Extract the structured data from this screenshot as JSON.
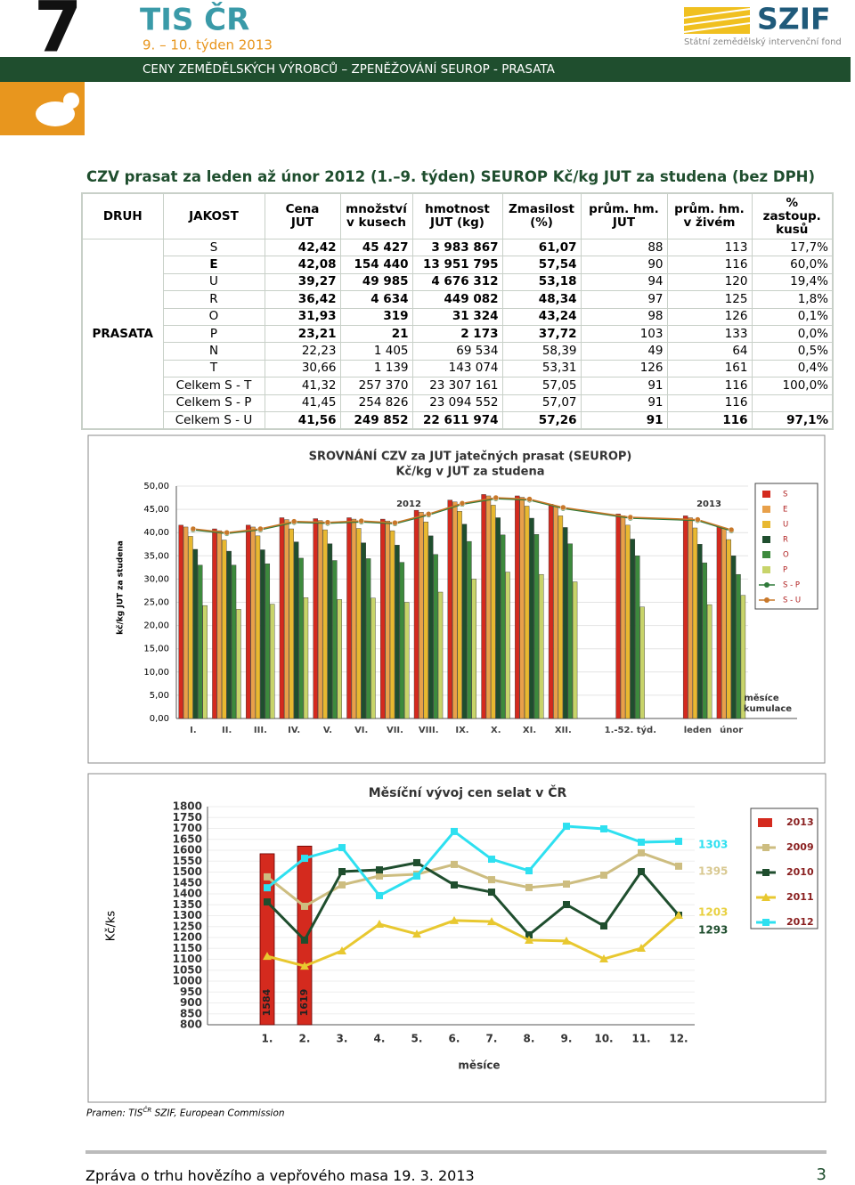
{
  "header": {
    "number": "7",
    "brand": "TIS ČR",
    "week": "9. – 10. týden  2013",
    "band": "CENY ZEMĚDĚLSKÝCH VÝROBCŮ – ZPENĚŽOVÁNÍ SEUROP - PRASATA",
    "logo": "SZIF",
    "logo_sub": "Státní zemědělský intervenční fond"
  },
  "section_title": "CZV prasat za leden až únor 2012 (1.–9. týden) SEUROP Kč/kg JUT za studena (bez DPH)",
  "table": {
    "headers": [
      "DRUH",
      "JAKOST",
      "Cena\nJUT",
      "množství\nv kusech",
      "hmotnost\nJUT  (kg)",
      "Zmasilost\n(%)",
      "prům. hm.\nJUT",
      "prům. hm.\nv živém",
      "%\nzastoup.\nkusů"
    ],
    "group": "PRASATA",
    "rows": [
      [
        "S",
        "42,42",
        "45 427",
        "3 983 867",
        "61,07",
        "88",
        "113",
        "17,7%"
      ],
      [
        "E",
        "42,08",
        "154 440",
        "13 951 795",
        "57,54",
        "90",
        "116",
        "60,0%"
      ],
      [
        "U",
        "39,27",
        "49 985",
        "4 676 312",
        "53,18",
        "94",
        "120",
        "19,4%"
      ],
      [
        "R",
        "36,42",
        "4 634",
        "449 082",
        "48,34",
        "97",
        "125",
        "1,8%"
      ],
      [
        "O",
        "31,93",
        "319",
        "31 324",
        "43,24",
        "98",
        "126",
        "0,1%"
      ],
      [
        "P",
        "23,21",
        "21",
        "2 173",
        "37,72",
        "103",
        "133",
        "0,0%"
      ],
      [
        "N",
        "22,23",
        "1 405",
        "69 534",
        "58,39",
        "49",
        "64",
        "0,5%"
      ],
      [
        "T",
        "30,66",
        "1 139",
        "143 074",
        "53,31",
        "126",
        "161",
        "0,4%"
      ],
      [
        "Celkem S - T",
        "41,32",
        "257 370",
        "23 307 161",
        "57,05",
        "91",
        "116",
        "100,0%"
      ],
      [
        "Celkem S - P",
        "41,45",
        "254 826",
        "23 094 552",
        "57,07",
        "91",
        "116"
      ],
      [
        "Celkem S - U",
        "41,56",
        "249 852",
        "22 611 974",
        "57,26",
        "91",
        "116",
        "97,1%"
      ]
    ]
  },
  "chart_data": [
    {
      "type": "bar",
      "title": "SROVNÁNÍ  CZV za JUT jatečných prasat (SEUROP)",
      "subtitle": "Kč/kg v JUT za studena",
      "y_label": "kč/kg JUT za studena",
      "annotations": [
        "2012",
        "2013",
        "měsíce",
        "kumulace"
      ],
      "categories": [
        "I.",
        "II.",
        "III.",
        "IV.",
        "V.",
        "VI.",
        "VII.",
        "VIII.",
        "IX.",
        "X.",
        "XI.",
        "XII.",
        "1.-52. týd.",
        "leden",
        "únor"
      ],
      "ylim": [
        0,
        50
      ],
      "yticks": [
        {
          "value": 0,
          "label": "0,00"
        },
        {
          "value": 5,
          "label": "5,00"
        },
        {
          "value": 10,
          "label": "10,00"
        },
        {
          "value": 15,
          "label": "15,00"
        },
        {
          "value": 20,
          "label": "20,00"
        },
        {
          "value": 25,
          "label": "25,00"
        },
        {
          "value": 30,
          "label": "30,00"
        },
        {
          "value": 35,
          "label": "35,00"
        },
        {
          "value": 40,
          "label": "40,00"
        },
        {
          "value": 45,
          "label": "45,00"
        },
        {
          "value": 50,
          "label": "50,00"
        }
      ],
      "grid": true,
      "series": [
        {
          "name": "S",
          "color": "#d42a1e",
          "kind": "bar",
          "values": [
            41.6,
            40.8,
            41.6,
            43.2,
            43.0,
            43.2,
            42.9,
            44.8,
            47.0,
            48.2,
            47.9,
            46.1,
            44.0,
            43.6,
            41.3
          ]
        },
        {
          "name": "E",
          "color": "#e8a04a",
          "kind": "bar",
          "values": [
            41.2,
            40.4,
            41.2,
            42.8,
            42.6,
            42.9,
            42.5,
            44.4,
            46.6,
            47.9,
            47.6,
            45.7,
            43.6,
            43.2,
            40.9
          ]
        },
        {
          "name": "U",
          "color": "#e8b830",
          "kind": "bar",
          "values": [
            39.2,
            38.4,
            39.3,
            40.8,
            40.6,
            40.9,
            40.4,
            42.3,
            44.6,
            45.9,
            45.7,
            43.6,
            41.6,
            41.0,
            38.5
          ]
        },
        {
          "name": "R",
          "color": "#1f4e2e",
          "kind": "bar",
          "values": [
            36.4,
            36.0,
            36.3,
            38.0,
            37.6,
            37.8,
            37.3,
            39.3,
            41.8,
            43.2,
            43.1,
            41.1,
            38.6,
            37.5,
            35.0
          ]
        },
        {
          "name": "O",
          "color": "#3d8a3d",
          "kind": "bar",
          "values": [
            33.0,
            33.0,
            33.3,
            34.5,
            34.0,
            34.4,
            33.6,
            35.3,
            38.1,
            39.5,
            39.6,
            37.6,
            35.0,
            33.5,
            31.0
          ]
        },
        {
          "name": "P",
          "color": "#c8d46a",
          "kind": "bar",
          "values": [
            24.3,
            23.5,
            24.6,
            26.0,
            25.6,
            25.9,
            25.0,
            27.2,
            30.0,
            31.5,
            31.0,
            29.4,
            24.0,
            24.5,
            26.5
          ]
        },
        {
          "name": "S - P",
          "color": "#2f7a3a",
          "kind": "line",
          "values": [
            40.6,
            39.8,
            40.6,
            42.2,
            42.0,
            42.3,
            41.9,
            43.8,
            46.1,
            47.3,
            47.0,
            45.2,
            43.1,
            42.6,
            40.4
          ]
        },
        {
          "name": "S - U",
          "color": "#c8782a",
          "kind": "line",
          "values": [
            40.8,
            40.0,
            40.8,
            42.4,
            42.2,
            42.5,
            42.1,
            44.0,
            46.3,
            47.5,
            47.2,
            45.4,
            43.3,
            42.8,
            40.6
          ]
        }
      ]
    },
    {
      "type": "line",
      "title": "Měsíční vývoj cen selat v ČR",
      "x_label": "měsíce",
      "y_label": "Kč/ks",
      "categories": [
        "1.",
        "2.",
        "3.",
        "4.",
        "5.",
        "6.",
        "7.",
        "8.",
        "9.",
        "10.",
        "11.",
        "12."
      ],
      "ylim": [
        800,
        1800
      ],
      "yticks": [
        800,
        850,
        900,
        950,
        1000,
        1050,
        1100,
        1150,
        1200,
        1250,
        1300,
        1350,
        1400,
        1450,
        1500,
        1550,
        1600,
        1650,
        1700,
        1750,
        1800
      ],
      "grid": true,
      "annotations": [
        {
          "text": "1303",
          "color": "#2ee0f0"
        },
        {
          "text": "1395",
          "color": "#d8c890"
        },
        {
          "text": "1203",
          "color": "#e8d040"
        },
        {
          "text": "1293",
          "color": "#1f4e2e"
        }
      ],
      "series": [
        {
          "name": "2013",
          "color": "#d42a1e",
          "kind": "bar",
          "values": [
            1584,
            1619,
            null,
            null,
            null,
            null,
            null,
            null,
            null,
            null,
            null,
            null
          ]
        },
        {
          "name": "2009",
          "color": "#cdbd80",
          "kind": "line",
          "marker": "square",
          "values": [
            1478,
            1343,
            1441,
            1482,
            1490,
            1535,
            1465,
            1429,
            1445,
            1486,
            1588,
            1527
          ]
        },
        {
          "name": "2010",
          "color": "#1f4e2e",
          "kind": "line",
          "marker": "square",
          "values": [
            1363,
            1188,
            1502,
            1510,
            1543,
            1441,
            1408,
            1212,
            1351,
            1253,
            1502,
            1302
          ]
        },
        {
          "name": "2011",
          "color": "#e8c830",
          "kind": "line",
          "marker": "triangle",
          "values": [
            1114,
            1069,
            1139,
            1261,
            1216,
            1278,
            1273,
            1188,
            1184,
            1102,
            1151,
            1302
          ]
        },
        {
          "name": "2012",
          "color": "#2ee0f0",
          "kind": "line",
          "marker": "square",
          "values": [
            1428,
            1563,
            1612,
            1392,
            1482,
            1686,
            1559,
            1506,
            1710,
            1698,
            1637,
            1641
          ]
        }
      ]
    }
  ],
  "source": {
    "prefix": "Pramen: TIS",
    "sup": "ČR",
    "rest": " SZIF, European Commission"
  },
  "footer": {
    "text": "Zpráva o trhu hovězího a vepřového masa  19. 3. 2013",
    "page": "3"
  }
}
